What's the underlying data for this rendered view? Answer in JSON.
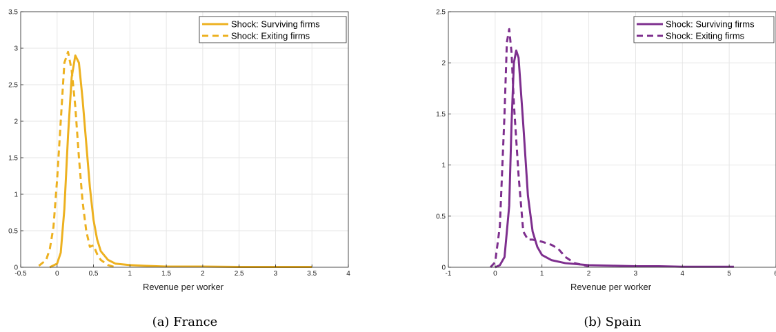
{
  "chart_data": [
    {
      "type": "line",
      "caption": "(a) France",
      "xlabel": "Revenue per worker",
      "ylabel": "",
      "xlim": [
        -0.5,
        4
      ],
      "ylim": [
        0,
        3.5
      ],
      "xticks": [
        -0.5,
        0,
        0.5,
        1,
        1.5,
        2,
        2.5,
        3,
        3.5,
        4
      ],
      "xtick_labels": [
        "-0.5",
        "0",
        "0.5",
        "1",
        "1.5",
        "2",
        "2.5",
        "3",
        "3.5",
        "4"
      ],
      "yticks": [
        0,
        0.5,
        1,
        1.5,
        2,
        2.5,
        3,
        3.5
      ],
      "ytick_labels": [
        "0",
        "0.5",
        "1",
        "1.5",
        "2",
        "2.5",
        "3",
        "3.5"
      ],
      "grid": true,
      "legend_position": "top-right",
      "series": [
        {
          "name": "Shock: Surviving firms",
          "style": "solid",
          "color": "#EDB120",
          "x": [
            -0.1,
            0.0,
            0.05,
            0.1,
            0.15,
            0.2,
            0.25,
            0.3,
            0.35,
            0.4,
            0.45,
            0.5,
            0.55,
            0.6,
            0.7,
            0.8,
            1.0,
            1.2,
            1.5,
            2.0,
            2.5,
            3.0,
            3.5
          ],
          "y": [
            0.0,
            0.05,
            0.2,
            0.8,
            1.8,
            2.6,
            2.9,
            2.8,
            2.3,
            1.7,
            1.1,
            0.65,
            0.38,
            0.22,
            0.1,
            0.05,
            0.03,
            0.02,
            0.01,
            0.01,
            0.005,
            0.005,
            0.005
          ]
        },
        {
          "name": "Shock: Exiting firms",
          "style": "dashed",
          "color": "#EDB120",
          "x": [
            -0.25,
            -0.15,
            -0.1,
            -0.05,
            0.0,
            0.05,
            0.1,
            0.15,
            0.2,
            0.25,
            0.3,
            0.35,
            0.4,
            0.45,
            0.5,
            0.55,
            0.6,
            0.7,
            0.8
          ],
          "y": [
            0.02,
            0.1,
            0.25,
            0.55,
            1.2,
            2.0,
            2.8,
            2.95,
            2.7,
            2.2,
            1.5,
            0.9,
            0.5,
            0.28,
            0.3,
            0.18,
            0.1,
            0.03,
            0.0
          ]
        }
      ]
    },
    {
      "type": "line",
      "caption": "(b) Spain",
      "xlabel": "Revenue per worker",
      "ylabel": "",
      "xlim": [
        -1,
        6
      ],
      "ylim": [
        0,
        2.5
      ],
      "xticks": [
        -1,
        0,
        1,
        2,
        3,
        4,
        5,
        6
      ],
      "xtick_labels": [
        "-1",
        "0",
        "1",
        "2",
        "3",
        "4",
        "5",
        "6"
      ],
      "yticks": [
        0,
        0.5,
        1,
        1.5,
        2,
        2.5
      ],
      "ytick_labels": [
        "0",
        "0.5",
        "1",
        "1.5",
        "2",
        "2.5"
      ],
      "grid": true,
      "legend_position": "top-right",
      "series": [
        {
          "name": "Shock: Surviving firms",
          "style": "solid",
          "color": "#7E2F8E",
          "x": [
            0.0,
            0.1,
            0.2,
            0.3,
            0.35,
            0.4,
            0.45,
            0.5,
            0.6,
            0.7,
            0.8,
            0.9,
            1.0,
            1.2,
            1.5,
            2.0,
            2.5,
            3.0,
            3.5,
            4.0,
            4.5,
            5.0,
            5.1
          ],
          "y": [
            0.0,
            0.02,
            0.1,
            0.6,
            1.4,
            2.0,
            2.12,
            2.05,
            1.4,
            0.7,
            0.35,
            0.2,
            0.12,
            0.07,
            0.04,
            0.02,
            0.015,
            0.01,
            0.01,
            0.005,
            0.005,
            0.005,
            0.005
          ]
        },
        {
          "name": "Shock: Exiting firms",
          "style": "dashed",
          "color": "#7E2F8E",
          "x": [
            -0.1,
            0.0,
            0.1,
            0.2,
            0.25,
            0.3,
            0.35,
            0.4,
            0.5,
            0.6,
            0.7,
            0.8,
            1.0,
            1.2,
            1.35,
            1.5,
            1.7,
            2.0
          ],
          "y": [
            0.0,
            0.05,
            0.4,
            1.5,
            2.2,
            2.33,
            2.1,
            1.6,
            0.9,
            0.35,
            0.27,
            0.27,
            0.25,
            0.22,
            0.18,
            0.1,
            0.04,
            0.01
          ]
        }
      ]
    }
  ]
}
